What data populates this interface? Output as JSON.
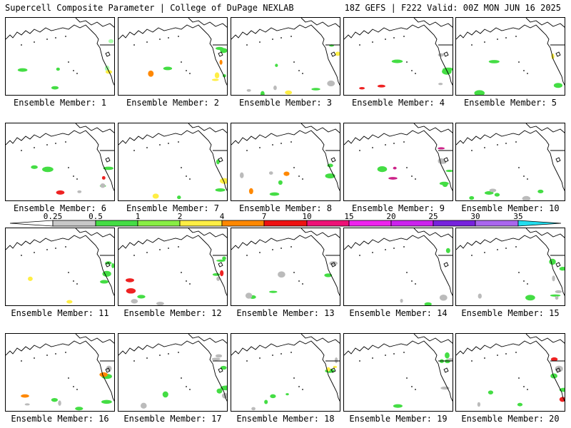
{
  "header": {
    "left": "Supercell Composite Parameter | College of DuPage NEXLAB",
    "right": "18Z GEFS | F222 Valid: 00Z MON JUN 16 2025"
  },
  "members": [
    {
      "label": "Ensemble Member: 1",
      "blobs": [
        [
          "#44dd44",
          0.5
        ],
        [
          "#aaffaa",
          0.25
        ],
        [
          "#ffee44",
          0.1
        ]
      ]
    },
    {
      "label": "Ensemble Member: 2",
      "blobs": [
        [
          "#44dd44",
          0.6
        ],
        [
          "#ff8800",
          0.3
        ],
        [
          "#ffee44",
          0.3
        ]
      ]
    },
    {
      "label": "Ensemble Member: 3",
      "blobs": [
        [
          "#44dd44",
          0.6
        ],
        [
          "#bbbbbb",
          0.5
        ],
        [
          "#ffee44",
          0.3
        ]
      ]
    },
    {
      "label": "Ensemble Member: 4",
      "blobs": [
        [
          "#44dd44",
          0.6
        ],
        [
          "#ee2222",
          0.4
        ],
        [
          "#bbbbbb",
          0.4
        ]
      ]
    },
    {
      "label": "Ensemble Member: 5",
      "blobs": [
        [
          "#44dd44",
          0.5
        ],
        [
          "#ffee44",
          0.1
        ]
      ]
    },
    {
      "label": "Ensemble Member: 6",
      "blobs": [
        [
          "#44dd44",
          0.6
        ],
        [
          "#ee2222",
          0.4
        ],
        [
          "#bbbbbb",
          0.3
        ]
      ]
    },
    {
      "label": "Ensemble Member: 7",
      "blobs": [
        [
          "#44dd44",
          0.5
        ],
        [
          "#ffee44",
          0.4
        ]
      ]
    },
    {
      "label": "Ensemble Member: 8",
      "blobs": [
        [
          "#44dd44",
          0.6
        ],
        [
          "#ff8800",
          0.4
        ],
        [
          "#bbbbbb",
          0.3
        ]
      ]
    },
    {
      "label": "Ensemble Member: 9",
      "blobs": [
        [
          "#44dd44",
          0.6
        ],
        [
          "#cc2288",
          0.5
        ],
        [
          "#bbbbbb",
          0.3
        ]
      ]
    },
    {
      "label": "Ensemble Member: 10",
      "blobs": [
        [
          "#44dd44",
          0.6
        ],
        [
          "#bbbbbb",
          0.4
        ]
      ]
    },
    {
      "label": "Ensemble Member: 11",
      "blobs": [
        [
          "#44dd44",
          0.6
        ],
        [
          "#ffee44",
          0.3
        ]
      ]
    },
    {
      "label": "Ensemble Member: 12",
      "blobs": [
        [
          "#44dd44",
          0.6
        ],
        [
          "#ee2222",
          0.5
        ],
        [
          "#bbbbbb",
          0.5
        ]
      ]
    },
    {
      "label": "Ensemble Member: 13",
      "blobs": [
        [
          "#44dd44",
          0.5
        ],
        [
          "#bbbbbb",
          0.5
        ]
      ]
    },
    {
      "label": "Ensemble Member: 14",
      "blobs": [
        [
          "#44dd44",
          0.3
        ],
        [
          "#bbbbbb",
          0.3
        ]
      ]
    },
    {
      "label": "Ensemble Member: 15",
      "blobs": [
        [
          "#44dd44",
          0.6
        ],
        [
          "#bbbbbb",
          0.6
        ]
      ]
    },
    {
      "label": "Ensemble Member: 16",
      "blobs": [
        [
          "#44dd44",
          0.6
        ],
        [
          "#ff8800",
          0.3
        ],
        [
          "#bbbbbb",
          0.5
        ]
      ]
    },
    {
      "label": "Ensemble Member: 17",
      "blobs": [
        [
          "#44dd44",
          0.6
        ],
        [
          "#bbbbbb",
          0.6
        ]
      ]
    },
    {
      "label": "Ensemble Member: 18",
      "blobs": [
        [
          "#44dd44",
          0.6
        ],
        [
          "#ffee44",
          0.3
        ],
        [
          "#bbbbbb",
          0.3
        ]
      ]
    },
    {
      "label": "Ensemble Member: 19",
      "blobs": [
        [
          "#44dd44",
          0.6
        ],
        [
          "#bbbbbb",
          0.3
        ]
      ]
    },
    {
      "label": "Ensemble Member: 20",
      "blobs": [
        [
          "#44dd44",
          0.6
        ],
        [
          "#ee2222",
          0.3
        ],
        [
          "#bbbbbb",
          0.4
        ]
      ]
    }
  ],
  "colorbar": {
    "ticks": [
      "0.25",
      "0.5",
      "1",
      "2",
      "4",
      "7",
      "10",
      "15",
      "20",
      "25",
      "30",
      "35"
    ],
    "colors": [
      "#ffffff",
      "#c8c8c8",
      "#44dd44",
      "#88ee44",
      "#ffee44",
      "#ff8800",
      "#ee1111",
      "#ee1177",
      "#ee22ee",
      "#cc22ee",
      "#7722dd",
      "#aa66ee",
      "#22ddee"
    ]
  }
}
